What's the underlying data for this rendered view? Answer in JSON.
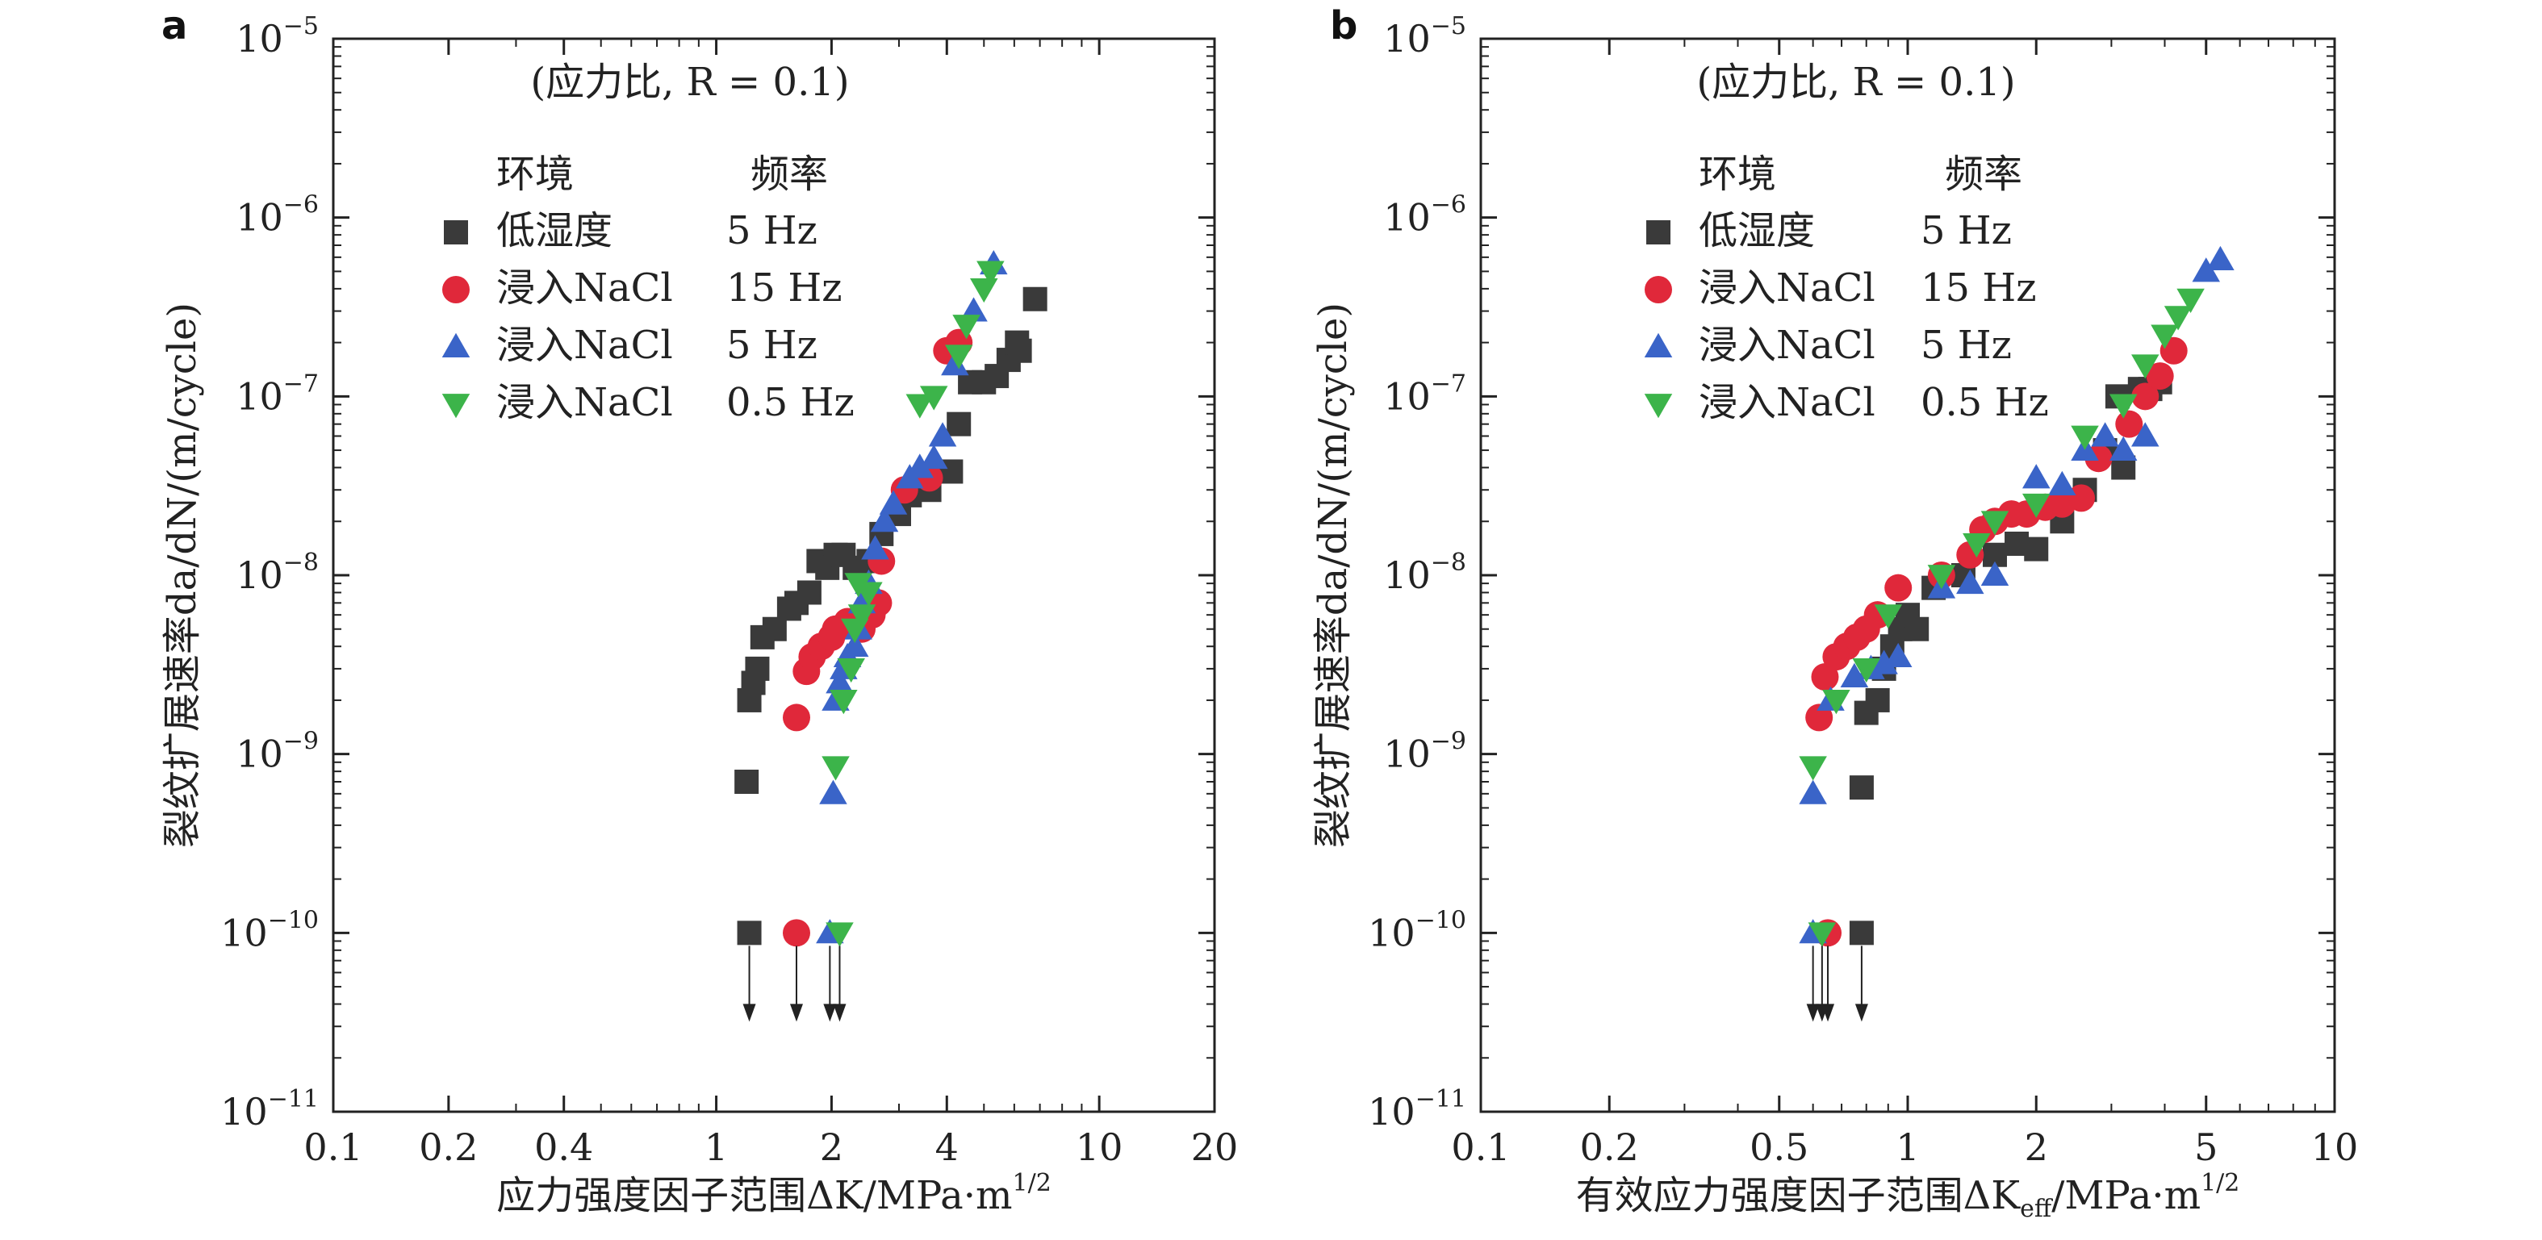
{
  "chart_data": [
    {
      "type": "scatter",
      "panel_label": "a",
      "annotation": "(应力比, R = 0.1)",
      "xlabel": "应力强度因子范围ΔK/MPa·m^1/2",
      "ylabel": "裂纹扩展速率da/dN/(m/cycle)",
      "xscale": "log",
      "yscale": "log",
      "xlim": [
        0.1,
        20
      ],
      "ylim": [
        1e-11,
        1e-05
      ],
      "xticks": [
        "0.1",
        "0.2",
        "0.4",
        "1",
        "2",
        "4",
        "10",
        "20"
      ],
      "xtick_values": [
        0.1,
        0.2,
        0.4,
        1,
        2,
        4,
        10,
        20
      ],
      "yticks": [
        -11,
        -10,
        -9,
        -8,
        -7,
        -6,
        -5
      ],
      "legend_header": {
        "env": "环境",
        "freq": "频率"
      },
      "legend": [
        {
          "name": "低湿度",
          "freq": "5 Hz",
          "marker": "square",
          "color": "#3a3a3a"
        },
        {
          "name": "浸入NaCl",
          "freq": "15 Hz",
          "marker": "circle",
          "color": "#e0283a"
        },
        {
          "name": "浸入NaCl",
          "freq": "5 Hz",
          "marker": "triangle-up",
          "color": "#3a64c8"
        },
        {
          "name": "浸入NaCl",
          "freq": "0.5 Hz",
          "marker": "triangle-down",
          "color": "#3cb44a"
        }
      ],
      "series": [
        {
          "legend_index": 0,
          "points": [
            [
              1.2,
              7e-10
            ],
            [
              1.22,
              2e-09
            ],
            [
              1.25,
              2.5e-09
            ],
            [
              1.28,
              3e-09
            ],
            [
              1.32,
              4.5e-09
            ],
            [
              1.42,
              5e-09
            ],
            [
              1.55,
              6.5e-09
            ],
            [
              1.62,
              7e-09
            ],
            [
              1.75,
              8e-09
            ],
            [
              1.85,
              1.2e-08
            ],
            [
              1.95,
              1.1e-08
            ],
            [
              2.05,
              1.3e-08
            ],
            [
              2.15,
              1.3e-08
            ],
            [
              2.3,
              1.1e-08
            ],
            [
              2.5,
              1.2e-08
            ],
            [
              2.7,
              1.7e-08
            ],
            [
              3.0,
              2.2e-08
            ],
            [
              3.2,
              2.8e-08
            ],
            [
              3.6,
              3e-08
            ],
            [
              4.1,
              3.8e-08
            ],
            [
              4.3,
              7e-08
            ],
            [
              4.6,
              1.2e-07
            ],
            [
              5.0,
              1.2e-07
            ],
            [
              5.4,
              1.3e-07
            ],
            [
              5.8,
              1.6e-07
            ],
            [
              6.1,
              2e-07
            ],
            [
              6.2,
              1.8e-07
            ],
            [
              6.8,
              3.5e-07
            ]
          ],
          "arrow": [
            1.22,
            1e-10
          ]
        },
        {
          "legend_index": 1,
          "points": [
            [
              1.62,
              1.6e-09
            ],
            [
              1.72,
              2.9e-09
            ],
            [
              1.78,
              3.5e-09
            ],
            [
              1.88,
              4e-09
            ],
            [
              2.0,
              4.5e-09
            ],
            [
              2.05,
              5e-09
            ],
            [
              2.2,
              5.5e-09
            ],
            [
              2.4,
              5e-09
            ],
            [
              2.55,
              6e-09
            ],
            [
              2.65,
              7e-09
            ],
            [
              2.7,
              1.2e-08
            ],
            [
              3.1,
              3e-08
            ],
            [
              3.6,
              3.5e-08
            ],
            [
              4.0,
              1.8e-07
            ],
            [
              4.3,
              2e-07
            ]
          ],
          "arrow": [
            1.62,
            1e-10
          ]
        },
        {
          "legend_index": 2,
          "points": [
            [
              2.02,
              6e-10
            ],
            [
              2.05,
              2e-09
            ],
            [
              2.1,
              2.5e-09
            ],
            [
              2.15,
              3e-09
            ],
            [
              2.2,
              3.5e-09
            ],
            [
              2.3,
              4e-09
            ],
            [
              2.35,
              5e-09
            ],
            [
              2.4,
              7e-09
            ],
            [
              2.5,
              9e-09
            ],
            [
              2.6,
              1.4e-08
            ],
            [
              2.75,
              2e-08
            ],
            [
              2.9,
              2.5e-08
            ],
            [
              3.2,
              3.5e-08
            ],
            [
              3.4,
              4e-08
            ],
            [
              3.7,
              4.5e-08
            ],
            [
              3.9,
              6e-08
            ],
            [
              4.2,
              1.5e-07
            ],
            [
              4.7,
              3e-07
            ],
            [
              5.3,
              5.5e-07
            ]
          ],
          "arrow": [
            1.98,
            1e-10
          ]
        },
        {
          "legend_index": 3,
          "points": [
            [
              2.05,
              8.5e-10
            ],
            [
              2.15,
              2e-09
            ],
            [
              2.25,
              3e-09
            ],
            [
              2.3,
              5e-09
            ],
            [
              2.4,
              6e-09
            ],
            [
              2.5,
              8e-09
            ],
            [
              2.35,
              9e-09
            ],
            [
              3.4,
              9e-08
            ],
            [
              3.7,
              1e-07
            ],
            [
              4.3,
              1.7e-07
            ],
            [
              4.5,
              2.5e-07
            ],
            [
              5.0,
              4e-07
            ],
            [
              5.2,
              5e-07
            ]
          ],
          "arrow": [
            2.1,
            1e-10
          ]
        }
      ]
    },
    {
      "type": "scatter",
      "panel_label": "b",
      "annotation": "(应力比, R = 0.1)",
      "xlabel": "有效应力强度因子范围ΔK_eff/MPa·m^1/2",
      "ylabel": "裂纹扩展速率da/dN/(m/cycle)",
      "xscale": "log",
      "yscale": "log",
      "xlim": [
        0.1,
        10
      ],
      "ylim": [
        1e-11,
        1e-05
      ],
      "xticks": [
        "0.1",
        "0.2",
        "0.5",
        "1",
        "2",
        "5",
        "10"
      ],
      "xtick_values": [
        0.1,
        0.2,
        0.5,
        1,
        2,
        5,
        10
      ],
      "yticks": [
        -11,
        -10,
        -9,
        -8,
        -7,
        -6,
        -5
      ],
      "legend_header": {
        "env": "环境",
        "freq": "频率"
      },
      "legend": [
        {
          "name": "低湿度",
          "freq": "5 Hz",
          "marker": "square",
          "color": "#3a3a3a"
        },
        {
          "name": "浸入NaCl",
          "freq": "15 Hz",
          "marker": "circle",
          "color": "#e0283a"
        },
        {
          "name": "浸入NaCl",
          "freq": "5 Hz",
          "marker": "triangle-up",
          "color": "#3a64c8"
        },
        {
          "name": "浸入NaCl",
          "freq": "0.5 Hz",
          "marker": "triangle-down",
          "color": "#3cb44a"
        }
      ],
      "series": [
        {
          "legend_index": 0,
          "points": [
            [
              0.78,
              6.5e-10
            ],
            [
              0.8,
              1.7e-09
            ],
            [
              0.85,
              2e-09
            ],
            [
              0.88,
              3e-09
            ],
            [
              0.92,
              4e-09
            ],
            [
              0.96,
              5e-09
            ],
            [
              1.0,
              6e-09
            ],
            [
              1.05,
              5e-09
            ],
            [
              1.15,
              8.5e-09
            ],
            [
              1.35,
              1e-08
            ],
            [
              1.6,
              1.3e-08
            ],
            [
              1.8,
              1.5e-08
            ],
            [
              2.0,
              1.4e-08
            ],
            [
              2.3,
              2e-08
            ],
            [
              2.6,
              3e-08
            ],
            [
              2.9,
              5e-08
            ],
            [
              3.2,
              4e-08
            ],
            [
              3.5,
              1.1e-07
            ],
            [
              3.7,
              1.1e-07
            ],
            [
              3.9,
              1.2e-07
            ],
            [
              3.1,
              1e-07
            ]
          ],
          "arrow": [
            0.78,
            1e-10
          ]
        },
        {
          "legend_index": 1,
          "points": [
            [
              0.62,
              1.6e-09
            ],
            [
              0.64,
              2.7e-09
            ],
            [
              0.68,
              3.5e-09
            ],
            [
              0.72,
              4e-09
            ],
            [
              0.76,
              4.5e-09
            ],
            [
              0.8,
              5e-09
            ],
            [
              0.85,
              6e-09
            ],
            [
              0.95,
              8.5e-09
            ],
            [
              1.2,
              1e-08
            ],
            [
              1.4,
              1.3e-08
            ],
            [
              1.5,
              1.8e-08
            ],
            [
              1.6,
              2e-08
            ],
            [
              1.75,
              2.2e-08
            ],
            [
              1.9,
              2.2e-08
            ],
            [
              2.1,
              2.4e-08
            ],
            [
              2.3,
              2.5e-08
            ],
            [
              2.55,
              2.7e-08
            ],
            [
              2.8,
              4.5e-08
            ],
            [
              3.3,
              7e-08
            ],
            [
              3.6,
              1e-07
            ],
            [
              3.9,
              1.3e-07
            ],
            [
              4.2,
              1.8e-07
            ]
          ],
          "arrow": [
            0.65,
            1e-10
          ]
        },
        {
          "legend_index": 2,
          "points": [
            [
              0.6,
              6e-10
            ],
            [
              0.66,
              2e-09
            ],
            [
              0.75,
              2.7e-09
            ],
            [
              0.82,
              3e-09
            ],
            [
              0.88,
              3.2e-09
            ],
            [
              0.95,
              3.5e-09
            ],
            [
              1.2,
              8.5e-09
            ],
            [
              1.4,
              9e-09
            ],
            [
              1.6,
              1e-08
            ],
            [
              2.0,
              3.5e-08
            ],
            [
              2.3,
              3.2e-08
            ],
            [
              2.6,
              5e-08
            ],
            [
              2.9,
              6e-08
            ],
            [
              3.2,
              5e-08
            ],
            [
              3.6,
              6e-08
            ],
            [
              5.0,
              5e-07
            ],
            [
              5.4,
              5.8e-07
            ]
          ],
          "arrow": [
            0.6,
            1e-10
          ]
        },
        {
          "legend_index": 3,
          "points": [
            [
              0.6,
              8.5e-10
            ],
            [
              0.68,
              2e-09
            ],
            [
              0.8,
              3e-09
            ],
            [
              0.9,
              6e-09
            ],
            [
              1.2,
              1e-08
            ],
            [
              1.45,
              1.5e-08
            ],
            [
              1.6,
              2e-08
            ],
            [
              2.0,
              2.5e-08
            ],
            [
              2.6,
              6e-08
            ],
            [
              3.2,
              9e-08
            ],
            [
              3.6,
              1.5e-07
            ],
            [
              4.0,
              2.2e-07
            ],
            [
              4.3,
              2.8e-07
            ],
            [
              4.6,
              3.5e-07
            ]
          ],
          "arrow": [
            0.63,
            1e-10
          ]
        }
      ]
    }
  ]
}
